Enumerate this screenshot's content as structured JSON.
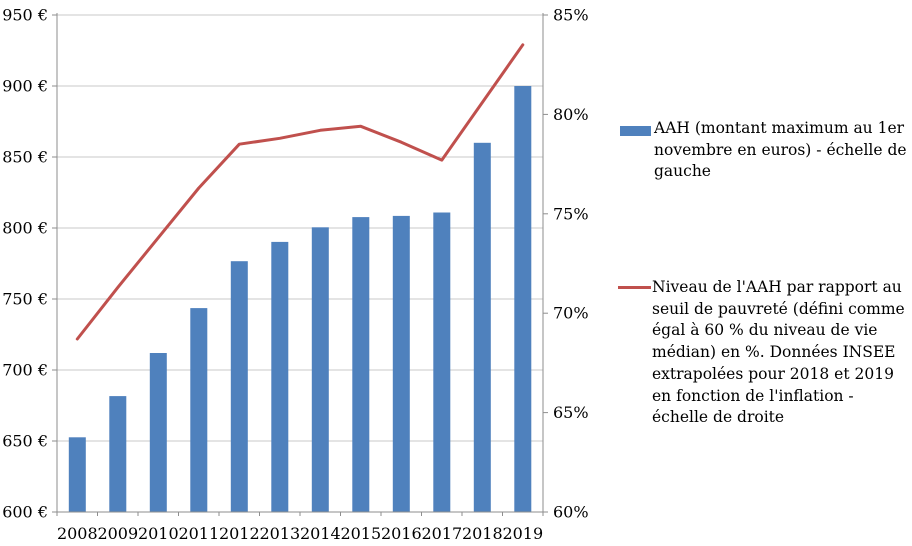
{
  "chart_style": {
    "background": "#FFFFFF",
    "axis_color": "#8E8E8E",
    "gridline_color": "#C8C8C8",
    "text_color": "#000000",
    "axis_font_size": 16
  },
  "chart_data": {
    "type": "bar+line",
    "title": "",
    "categories": [
      "2008",
      "2009",
      "2010",
      "2011",
      "2012",
      "2013",
      "2014",
      "2015",
      "2016",
      "2017",
      "2018",
      "2019"
    ],
    "series": [
      {
        "name": "AAH (montant maximum au 1er novembre en euros) - échelle de gauche",
        "type": "bar",
        "axis": "left",
        "color": "#4F81BD",
        "values": [
          652.6,
          681.6,
          712.0,
          743.6,
          776.6,
          790.2,
          800.5,
          807.7,
          808.5,
          810.9,
          860.0,
          900.0
        ]
      },
      {
        "name": "Niveau de l'AAH par rapport au seuil de pauvreté (défini comme égal à 60 % du niveau de vie médian) en %. Données INSEE extrapolées pour 2018 et 2019 en fonction de l'inflation - échelle de droite",
        "type": "line",
        "axis": "right",
        "color": "#C0504D",
        "values": [
          68.7,
          71.3,
          73.8,
          76.3,
          78.5,
          78.8,
          79.2,
          79.4,
          78.6,
          77.7,
          80.6,
          83.5
        ]
      }
    ],
    "left_axis": {
      "min": 600,
      "max": 950,
      "step": 50,
      "tick_labels": [
        "950 €",
        "900 €",
        "850 €",
        "800 €",
        "750 €",
        "700 €",
        "650 €",
        "600 €"
      ]
    },
    "right_axis": {
      "min": 60,
      "max": 85,
      "step": 5,
      "tick_labels": [
        "85%",
        "80%",
        "75%",
        "70%",
        "65%",
        "60%"
      ]
    },
    "grid": true,
    "legend_position": "right"
  }
}
